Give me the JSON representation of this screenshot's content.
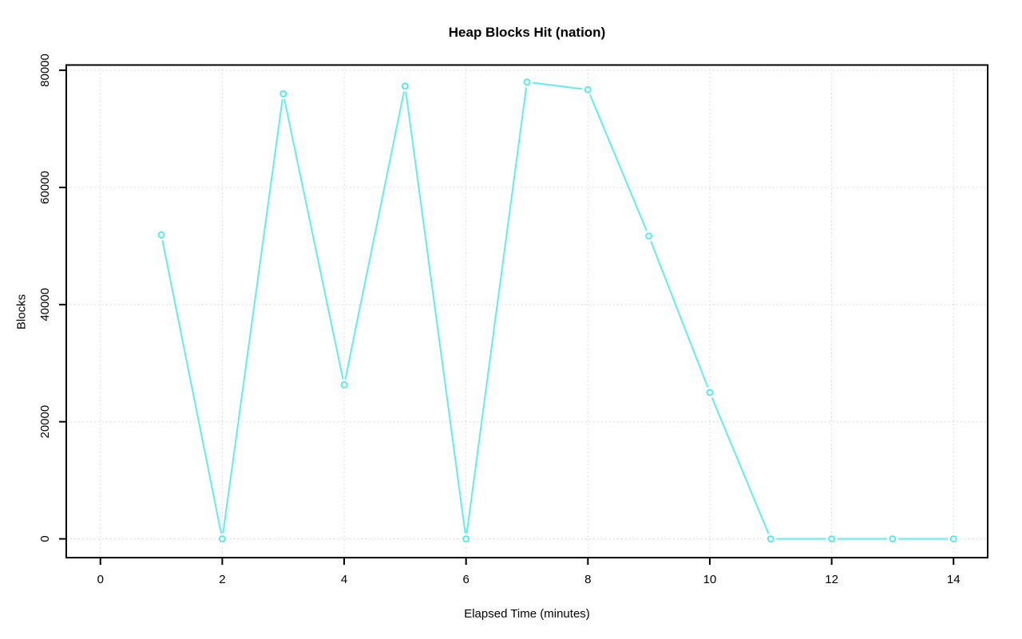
{
  "chart_data": {
    "type": "line",
    "title": "Heap Blocks Hit (nation)",
    "xlabel": "Elapsed Time (minutes)",
    "ylabel": "Blocks",
    "x": [
      1,
      2,
      3,
      4,
      5,
      6,
      7,
      8,
      9,
      10,
      11,
      12,
      13,
      14
    ],
    "y": [
      51900,
      0,
      76000,
      26300,
      77300,
      0,
      78000,
      76700,
      51700,
      25000,
      0,
      0,
      0,
      0
    ],
    "xlim": [
      -0.56,
      14.56
    ],
    "ylim": [
      -3200,
      80900
    ],
    "x_ticks": [
      0,
      2,
      4,
      6,
      8,
      10,
      12,
      14
    ],
    "y_ticks": [
      0,
      20000,
      40000,
      60000,
      80000
    ],
    "grid": true,
    "grid_style": "dotted",
    "legend": null,
    "marker": "open-circle",
    "line_style": "points-with-gaps",
    "series_color": "#5FEDF0",
    "marker_color": "#47EBEF",
    "grid_color": "#d2d2d2",
    "axis_color": "#000000",
    "background_color": "#ffffff"
  }
}
